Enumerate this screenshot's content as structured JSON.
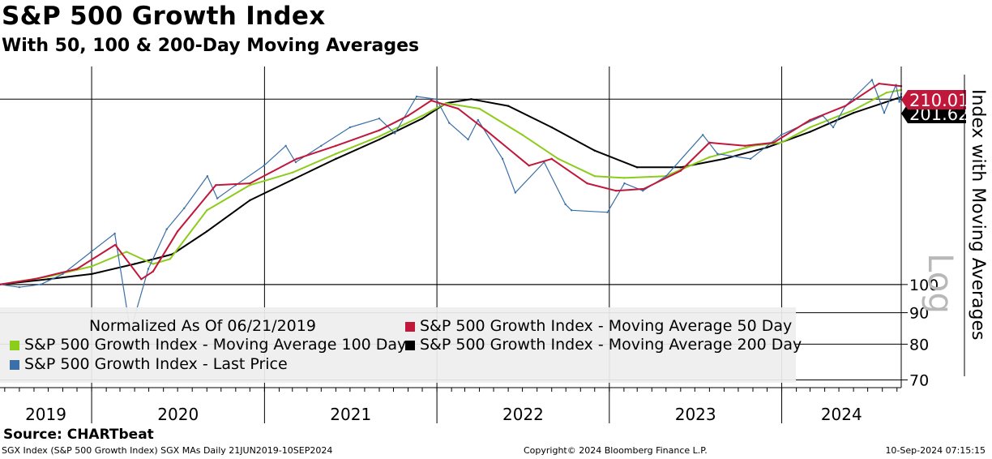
{
  "title": "S&P 500 Growth Index",
  "subtitle": "With 50, 100 & 200-Day Moving Averages",
  "source": "Source: CHARTbeat",
  "footer": {
    "left": "SGX Index (S&P 500 Growth Index) SGX MAs  Daily 21JUN2019-10SEP2024",
    "center": "Copyright© 2024 Bloomberg Finance L.P.",
    "right": "10-Sep-2024 07:15:15"
  },
  "colors": {
    "price": "#3a6fa8",
    "ma50": "#c0173a",
    "ma100": "#8ccc1a",
    "ma200": "#000000",
    "legend_bg": "#eeeeee"
  },
  "chart_data": {
    "type": "line",
    "y_scale": "log",
    "ylabel": "Index with Moving Averages",
    "scale_label": "Log",
    "ylim": [
      68,
      226
    ],
    "yticks": [
      70,
      80,
      90,
      100
    ],
    "xlim": [
      "2019-06-21",
      "2024-09-10"
    ],
    "year_labels": [
      "2019",
      "2020",
      "2021",
      "2022",
      "2023",
      "2024"
    ],
    "grid": true,
    "reference_lines": [
      100,
      200
    ],
    "last_value_labels": [
      {
        "series": "S&P 500 Growth Index - Moving Average 50 Day",
        "text": "210.01"
      },
      {
        "series": "S&P 500 Growth Index - Moving Average 200 Day",
        "text": "201.62"
      }
    ],
    "legend": {
      "placement": "bottom-left",
      "header": "Normalized As Of 06/21/2019",
      "entries": [
        "S&P 500 Growth Index - Moving Average 50 Day",
        "S&P 500 Growth Index - Moving Average 100 Day",
        "S&P 500 Growth Index - Moving Average 200 Day",
        "S&P 500 Growth Index - Last Price"
      ]
    },
    "series": [
      {
        "name": "S&P 500 Growth Index - Last Price",
        "key": "price",
        "x": [
          "2019-06-21",
          "2019-08-01",
          "2019-09-15",
          "2019-11-01",
          "2019-12-31",
          "2020-02-19",
          "2020-03-23",
          "2020-04-30",
          "2020-06-08",
          "2020-07-15",
          "2020-09-02",
          "2020-09-23",
          "2020-11-01",
          "2020-12-31",
          "2021-02-15",
          "2021-03-08",
          "2021-05-01",
          "2021-07-01",
          "2021-09-01",
          "2021-10-04",
          "2021-11-19",
          "2021-12-31",
          "2022-01-27",
          "2022-03-08",
          "2022-03-29",
          "2022-05-20",
          "2022-06-16",
          "2022-08-16",
          "2022-09-30",
          "2022-10-13",
          "2022-12-28",
          "2023-02-02",
          "2023-03-13",
          "2023-05-01",
          "2023-07-18",
          "2023-08-18",
          "2023-10-27",
          "2023-12-31",
          "2024-03-28",
          "2024-04-19",
          "2024-05-15",
          "2024-07-10",
          "2024-08-05",
          "2024-08-30",
          "2024-09-06",
          "2024-09-10"
        ],
        "values": [
          100,
          99,
          100,
          104,
          113,
          121,
          84,
          106,
          123,
          133,
          150,
          138,
          145,
          156,
          168,
          158,
          168,
          180,
          186,
          176,
          202,
          200,
          183,
          172,
          185,
          160,
          141,
          158,
          135,
          132,
          131,
          146,
          142,
          150,
          175,
          163,
          160,
          175,
          188,
          180,
          195,
          215,
          190,
          211,
          198,
          204
        ]
      },
      {
        "name": "S&P 500 Growth Index - Moving Average 50 Day",
        "key": "ma50",
        "x": [
          "2019-06-21",
          "2019-09-01",
          "2019-12-01",
          "2020-02-20",
          "2020-04-15",
          "2020-05-10",
          "2020-07-01",
          "2020-09-20",
          "2020-12-01",
          "2021-03-10",
          "2021-06-01",
          "2021-09-01",
          "2021-11-01",
          "2021-12-20",
          "2022-02-15",
          "2022-04-15",
          "2022-07-15",
          "2022-09-01",
          "2022-11-15",
          "2023-01-15",
          "2023-03-15",
          "2023-06-01",
          "2023-08-01",
          "2023-10-15",
          "2023-12-15",
          "2024-03-01",
          "2024-05-15",
          "2024-07-25",
          "2024-09-10"
        ],
        "values": [
          100,
          102,
          106,
          116,
          102,
          105,
          122,
          145,
          146,
          160,
          168,
          178,
          188,
          199,
          193,
          178,
          156,
          160,
          146,
          142,
          143,
          153,
          170,
          168,
          170,
          185,
          195,
          212,
          210.01
        ]
      },
      {
        "name": "S&P 500 Growth Index - Moving Average 100 Day",
        "key": "ma100",
        "x": [
          "2019-06-21",
          "2019-10-01",
          "2020-01-01",
          "2020-03-15",
          "2020-05-10",
          "2020-06-15",
          "2020-09-01",
          "2020-12-01",
          "2021-03-01",
          "2021-06-01",
          "2021-09-01",
          "2021-12-01",
          "2022-01-20",
          "2022-04-01",
          "2022-07-01",
          "2022-09-15",
          "2022-12-01",
          "2023-02-01",
          "2023-05-01",
          "2023-08-01",
          "2023-11-01",
          "2023-12-31",
          "2024-03-01",
          "2024-06-01",
          "2024-08-10",
          "2024-09-10"
        ],
        "values": [
          100,
          103,
          107,
          113,
          108,
          110,
          132,
          145,
          152,
          163,
          174,
          188,
          197,
          193,
          175,
          160,
          150,
          149,
          150,
          161,
          168,
          170,
          180,
          192,
          205,
          207
        ]
      },
      {
        "name": "S&P 500 Growth Index - Moving Average 200 Day",
        "key": "ma200",
        "x": [
          "2019-06-21",
          "2019-10-01",
          "2020-01-01",
          "2020-04-01",
          "2020-06-20",
          "2020-09-01",
          "2020-12-01",
          "2021-03-01",
          "2021-06-01",
          "2021-09-01",
          "2021-12-01",
          "2022-01-20",
          "2022-03-15",
          "2022-06-01",
          "2022-09-01",
          "2022-12-01",
          "2023-03-01",
          "2023-06-01",
          "2023-09-01",
          "2023-12-01",
          "2024-03-01",
          "2024-06-01",
          "2024-09-10"
        ],
        "values": [
          100,
          102,
          104,
          108,
          112,
          122,
          137,
          148,
          160,
          172,
          186,
          197,
          200,
          195,
          180,
          165,
          155,
          155,
          160,
          167,
          177,
          190,
          201.62
        ]
      }
    ]
  }
}
